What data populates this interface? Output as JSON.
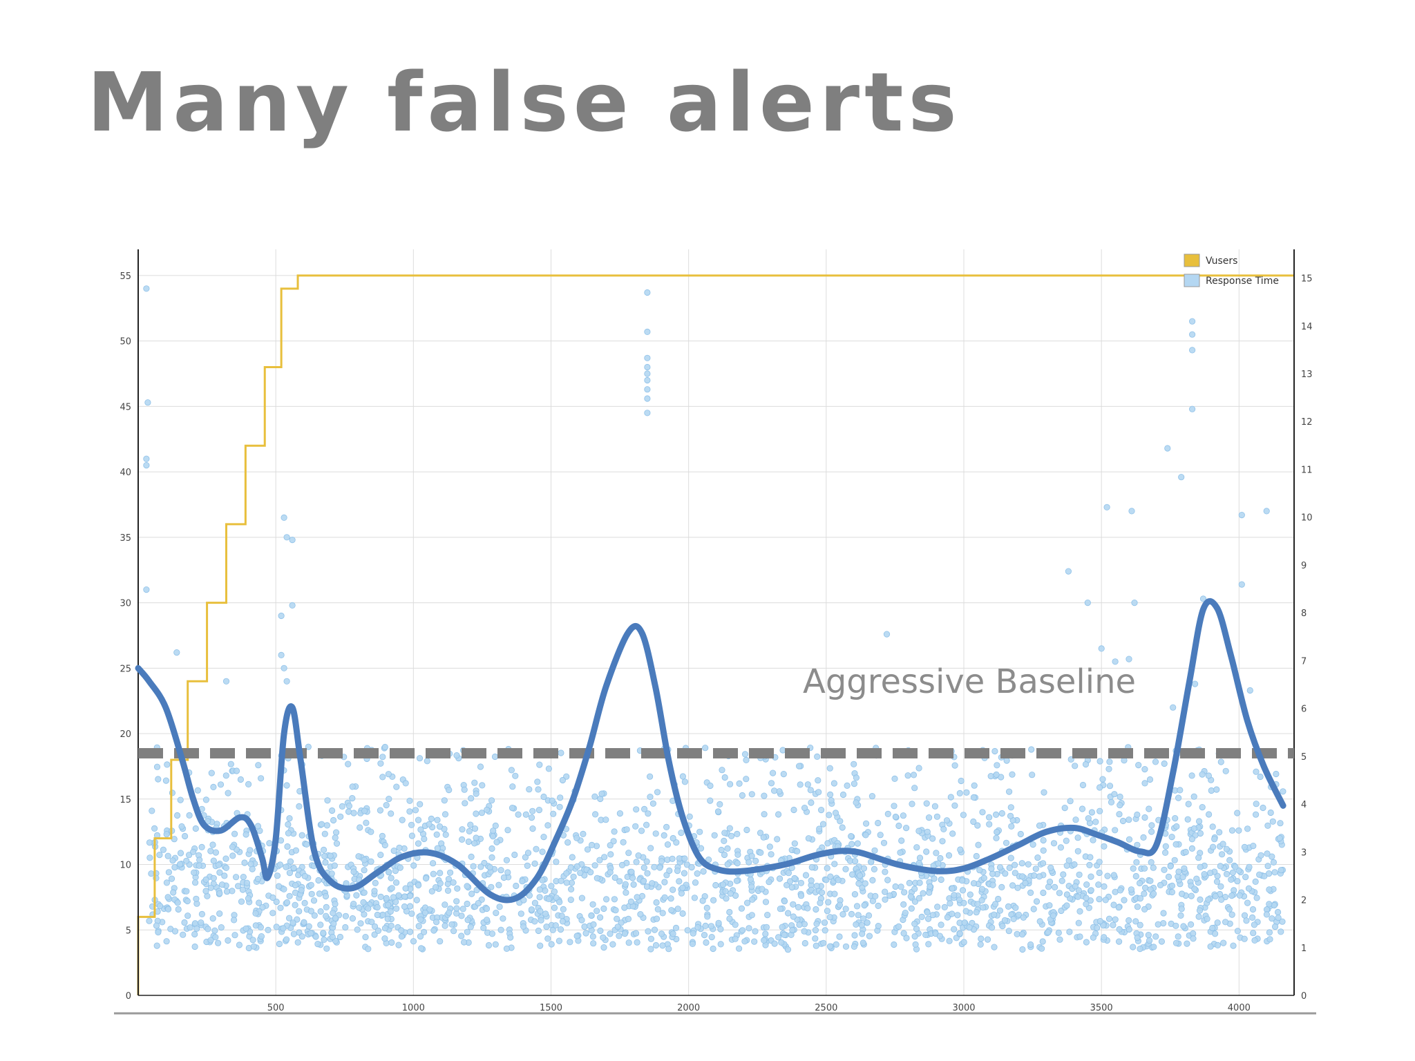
{
  "slide": {
    "title": "Many false alerts"
  },
  "chart_data": {
    "type": "scatter",
    "title": "",
    "xlabel": "",
    "ylabel": "",
    "xlim": [
      0,
      4200
    ],
    "ylim": [
      0,
      57
    ],
    "y2lim": [
      0,
      15.6
    ],
    "x_ticks": [
      500,
      1000,
      1500,
      2000,
      2500,
      3000,
      3500,
      4000
    ],
    "y_ticks": [
      0,
      5,
      10,
      15,
      20,
      25,
      30,
      35,
      40,
      45,
      50,
      55
    ],
    "y2_ticks": [
      0,
      1,
      2,
      3,
      4,
      5,
      6,
      7,
      8,
      9,
      10,
      11,
      12,
      13,
      14,
      15
    ],
    "grid": true,
    "legend": {
      "position": "top-right",
      "entries": [
        {
          "label": "Vusers",
          "color": "#e8bf3c"
        },
        {
          "label": "Response Time",
          "color": "#b4d7f2"
        }
      ]
    },
    "series": [
      {
        "name": "Vusers",
        "type": "step",
        "color": "#e8bf3c",
        "axis": "left",
        "x": [
          0,
          60,
          120,
          180,
          250,
          320,
          390,
          460,
          520,
          580,
          4200
        ],
        "y": [
          6,
          12,
          18,
          24,
          30,
          36,
          42,
          48,
          54,
          55,
          55
        ]
      },
      {
        "name": "Response Time",
        "type": "scatter",
        "color": "#b4d7f2",
        "axis": "left",
        "outliers": [
          [
            30,
            54
          ],
          [
            35,
            45.3
          ],
          [
            30,
            41
          ],
          [
            30,
            40.5
          ],
          [
            30,
            31
          ],
          [
            530,
            36.5
          ],
          [
            560,
            34.8
          ],
          [
            540,
            35
          ],
          [
            560,
            29.8
          ],
          [
            520,
            29
          ],
          [
            520,
            26
          ],
          [
            530,
            25
          ],
          [
            540,
            24
          ],
          [
            140,
            26.2
          ],
          [
            320,
            24
          ],
          [
            1850,
            53.7
          ],
          [
            1850,
            50.7
          ],
          [
            1850,
            48.7
          ],
          [
            1850,
            48
          ],
          [
            1850,
            47.5
          ],
          [
            1850,
            47
          ],
          [
            1850,
            46.3
          ],
          [
            1850,
            45.6
          ],
          [
            1850,
            44.5
          ],
          [
            2720,
            27.6
          ],
          [
            3380,
            32.4
          ],
          [
            3450,
            30
          ],
          [
            3620,
            30
          ],
          [
            3520,
            37.3
          ],
          [
            3610,
            37
          ],
          [
            3740,
            41.8
          ],
          [
            3790,
            39.6
          ],
          [
            3830,
            51.5
          ],
          [
            3830,
            50.5
          ],
          [
            3830,
            49.3
          ],
          [
            3830,
            44.8
          ],
          [
            4010,
            36.7
          ],
          [
            4100,
            37
          ],
          [
            4010,
            31.4
          ],
          [
            3870,
            30.3
          ],
          [
            3840,
            23.8
          ],
          [
            4040,
            23.3
          ],
          [
            3760,
            22
          ],
          [
            3600,
            25.7
          ],
          [
            3500,
            26.5
          ],
          [
            3550,
            25.5
          ]
        ]
      },
      {
        "name": "",
        "type": "line",
        "color": "#4a7bbc",
        "axis": "left",
        "x": [
          0,
          40,
          100,
          160,
          200,
          240,
          300,
          370,
          410,
          450,
          470,
          500,
          530,
          560,
          590,
          640,
          700,
          780,
          870,
          960,
          1060,
          1160,
          1280,
          1370,
          1450,
          1520,
          1580,
          1640,
          1700,
          1780,
          1830,
          1880,
          1930,
          1980,
          2040,
          2110,
          2200,
          2350,
          2480,
          2600,
          2760,
          2900,
          3000,
          3100,
          3200,
          3300,
          3400,
          3480,
          3560,
          3640,
          3700,
          3760,
          3820,
          3870,
          3920,
          3970,
          4030,
          4090,
          4160
        ],
        "y": [
          25,
          24,
          22,
          18,
          15,
          13,
          12.6,
          13.6,
          13,
          10.5,
          9,
          12,
          20,
          22,
          18,
          11,
          8.7,
          8.2,
          9.4,
          10.6,
          10.9,
          10,
          7.7,
          7.4,
          9,
          12,
          15,
          19,
          23.6,
          27.7,
          27.7,
          23.5,
          17.7,
          13.5,
          10.5,
          9.6,
          9.5,
          10,
          10.8,
          11,
          10,
          9.5,
          9.7,
          10.5,
          11.5,
          12.5,
          12.8,
          12.3,
          11.7,
          11,
          11.5,
          17,
          24,
          29.5,
          29.6,
          26,
          21,
          17.5,
          14.5
        ]
      }
    ],
    "annotations": [
      {
        "text": "Aggressive Baseline",
        "y": 18.5,
        "style": "dashed",
        "color": "#7f7f7f"
      }
    ]
  }
}
